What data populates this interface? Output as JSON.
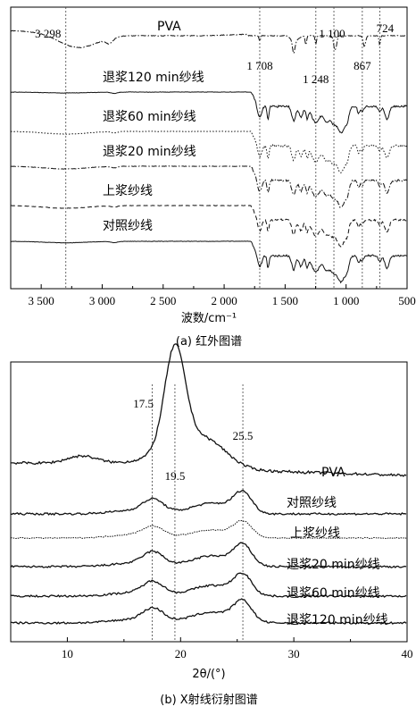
{
  "chart_data": [
    {
      "type": "line",
      "subtype": "ir-spectrum-stacked",
      "caption": "(a)  红外图谱",
      "xlabel": "波数/cm⁻¹",
      "xlim": [
        3750,
        500
      ],
      "x_reversed": true,
      "xticks": [
        3500,
        3000,
        2500,
        2000,
        1500,
        1000,
        500
      ],
      "xtick_labels": [
        "3 500",
        "3 000",
        "2 500",
        "2 000",
        "1 500",
        "1 000",
        "500"
      ],
      "grid": false,
      "reference_lines": [
        3298,
        1708,
        1248,
        1100,
        867,
        724
      ],
      "annotations": [
        {
          "text": "3 298",
          "x": 3298
        },
        {
          "text": "1 708",
          "x": 1708
        },
        {
          "text": "1 248",
          "x": 1248
        },
        {
          "text": "1 100",
          "x": 1100
        },
        {
          "text": "867",
          "x": 867
        },
        {
          "text": "724",
          "x": 724
        }
      ],
      "series": [
        {
          "name": "PVA",
          "style": "dash-dot"
        },
        {
          "name": "退浆120 min纱线",
          "style": "solid"
        },
        {
          "name": "退浆60 min纱线",
          "style": "dotted"
        },
        {
          "name": "退浆20 min纱线",
          "style": "dash-dot"
        },
        {
          "name": "上浆纱线",
          "style": "dashed"
        },
        {
          "name": "对照纱线",
          "style": "solid"
        }
      ]
    },
    {
      "type": "line",
      "subtype": "xrd-stacked",
      "caption": "(b)  X射线衍射图谱",
      "xlabel": "2θ/(°)",
      "xlim": [
        5,
        40
      ],
      "xticks": [
        10,
        20,
        30,
        40
      ],
      "xtick_labels": [
        "10",
        "20",
        "30",
        "40"
      ],
      "grid": false,
      "reference_lines": [
        17.5,
        19.5,
        25.5
      ],
      "annotations": [
        {
          "text": "17.5",
          "x": 17.5
        },
        {
          "text": "19.5",
          "x": 19.5
        },
        {
          "text": "25.5",
          "x": 25.5
        }
      ],
      "series": [
        {
          "name": "PVA"
        },
        {
          "name": "对照纱线"
        },
        {
          "name": "上浆纱线"
        },
        {
          "name": "退浆20 min纱线"
        },
        {
          "name": "退浆60 min纱线"
        },
        {
          "name": "退浆120 min纱线"
        }
      ]
    }
  ]
}
